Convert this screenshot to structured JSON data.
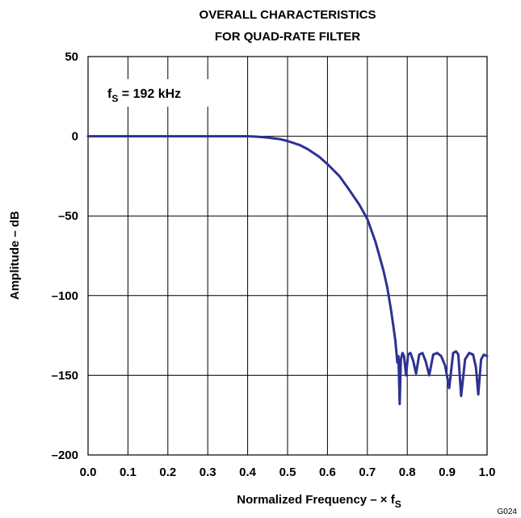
{
  "chart_data": {
    "type": "line",
    "title_lines": [
      "OVERALL CHARACTERISTICS",
      "FOR QUAD-RATE FILTER"
    ],
    "xlabel": "Normalized Frequency – × f",
    "xlabel_sub": "S",
    "ylabel": "Amplitude – dB",
    "annotation": "f",
    "annotation_sub": "S",
    "annotation_rest": " = 192 kHz",
    "figure_code": "G024",
    "xlim": [
      0.0,
      1.0
    ],
    "ylim": [
      -200,
      50
    ],
    "x_ticks": [
      "0.0",
      "0.1",
      "0.2",
      "0.3",
      "0.4",
      "0.5",
      "0.6",
      "0.7",
      "0.8",
      "0.9",
      "1.0"
    ],
    "y_ticks": [
      "50",
      "0",
      "–50",
      "–100",
      "–150",
      "–200"
    ],
    "x_tick_values": [
      0.0,
      0.1,
      0.2,
      0.3,
      0.4,
      0.5,
      0.6,
      0.7,
      0.8,
      0.9,
      1.0
    ],
    "y_tick_values": [
      50,
      0,
      -50,
      -100,
      -150,
      -200
    ],
    "grid": true,
    "line_color": "#2e3192",
    "series": [
      {
        "x": [
          0.0,
          0.4,
          0.42,
          0.45,
          0.48,
          0.5,
          0.53,
          0.55,
          0.58,
          0.6,
          0.63,
          0.65,
          0.68,
          0.7,
          0.72,
          0.74,
          0.75,
          0.76,
          0.77,
          0.775,
          0.778,
          0.781,
          0.784,
          0.788,
          0.792,
          0.797,
          0.802,
          0.808,
          0.815,
          0.822,
          0.83,
          0.838,
          0.846,
          0.855,
          0.865,
          0.875,
          0.885,
          0.895,
          0.905,
          0.915,
          0.922,
          0.928,
          0.935,
          0.945,
          0.955,
          0.965,
          0.972,
          0.978,
          0.985,
          0.992,
          1.0
        ],
        "y": [
          0,
          0,
          -0.2,
          -0.8,
          -1.8,
          -3,
          -5.5,
          -8,
          -13,
          -17.5,
          -25,
          -32,
          -43,
          -52,
          -66,
          -84,
          -95,
          -110,
          -128,
          -142,
          -138,
          -168,
          -140,
          -136,
          -138,
          -150,
          -137,
          -136,
          -141,
          -149,
          -137,
          -136,
          -141,
          -150,
          -137,
          -136,
          -138,
          -144,
          -158,
          -136,
          -135,
          -137,
          -163,
          -140,
          -136,
          -137,
          -145,
          -162,
          -140,
          -137,
          -138
        ]
      }
    ]
  }
}
